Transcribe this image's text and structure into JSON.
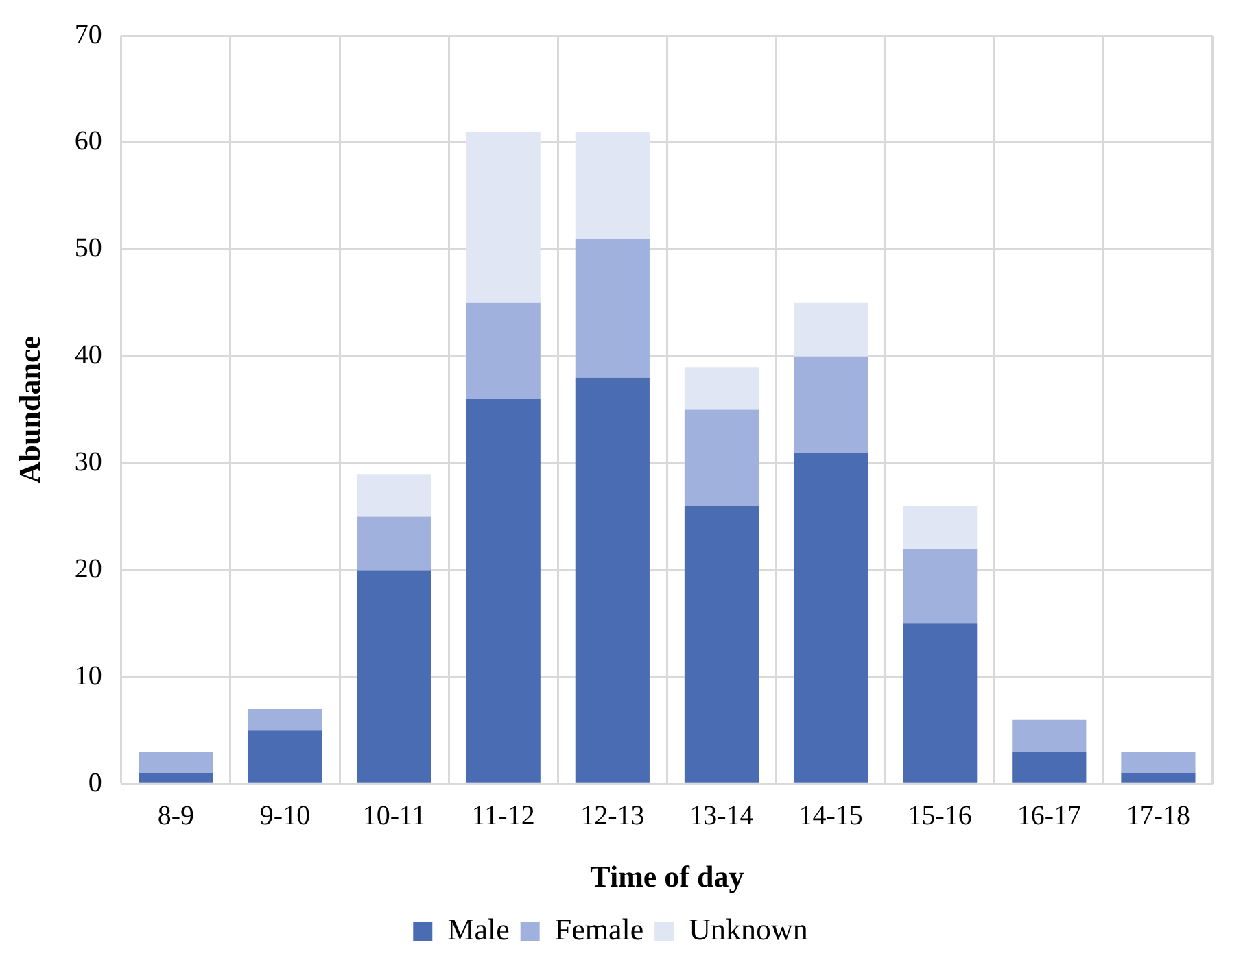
{
  "chart_data": {
    "type": "bar",
    "stacked": true,
    "xlabel": "Time of day",
    "ylabel": "Abundance",
    "categories": [
      "8-9",
      "9-10",
      "10-11",
      "11-12",
      "12-13",
      "13-14",
      "14-15",
      "15-16",
      "16-17",
      "17-18"
    ],
    "series": [
      {
        "name": "Male",
        "color": "#4a6cb3",
        "values": [
          1,
          5,
          20,
          36,
          38,
          26,
          31,
          15,
          3,
          1
        ]
      },
      {
        "name": "Female",
        "color": "#9fb1dc",
        "values": [
          2,
          2,
          5,
          9,
          13,
          9,
          9,
          7,
          3,
          2
        ]
      },
      {
        "name": "Unknown",
        "color": "#e0e6f4",
        "values": [
          0,
          0,
          4,
          16,
          10,
          4,
          5,
          4,
          0,
          0
        ]
      }
    ],
    "ylim": [
      0,
      70
    ],
    "yticks": [
      0,
      10,
      20,
      30,
      40,
      50,
      60,
      70
    ],
    "grid": true,
    "legend": "bottom"
  }
}
